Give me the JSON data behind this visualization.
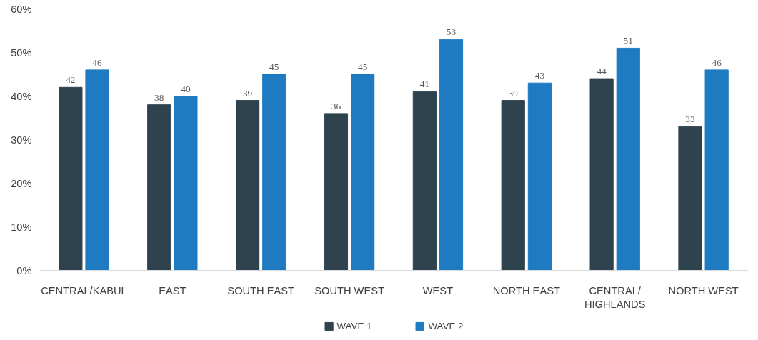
{
  "chart_data": {
    "type": "bar",
    "categories": [
      "CENTRAL/KABUL",
      "EAST",
      "SOUTH EAST",
      "SOUTH WEST",
      "WEST",
      "NORTH EAST",
      "CENTRAL/ HIGHLANDS",
      "NORTH WEST"
    ],
    "series": [
      {
        "name": "WAVE 1",
        "color": "#2f434f",
        "values": [
          42,
          38,
          39,
          36,
          41,
          39,
          44,
          33
        ]
      },
      {
        "name": "WAVE 2",
        "color": "#1f7bc1",
        "values": [
          46,
          40,
          45,
          45,
          53,
          43,
          51,
          46
        ]
      }
    ],
    "ylim": [
      0,
      60
    ],
    "yticks": [
      {
        "value": 0,
        "label": "0%"
      },
      {
        "value": 10,
        "label": "10%"
      },
      {
        "value": 20,
        "label": "20%"
      },
      {
        "value": 30,
        "label": "30%"
      },
      {
        "value": 40,
        "label": "40%"
      },
      {
        "value": 50,
        "label": "50%"
      },
      {
        "value": 60,
        "label": "60%"
      }
    ],
    "data_labels": true,
    "grid": false,
    "legend": "bottom"
  }
}
